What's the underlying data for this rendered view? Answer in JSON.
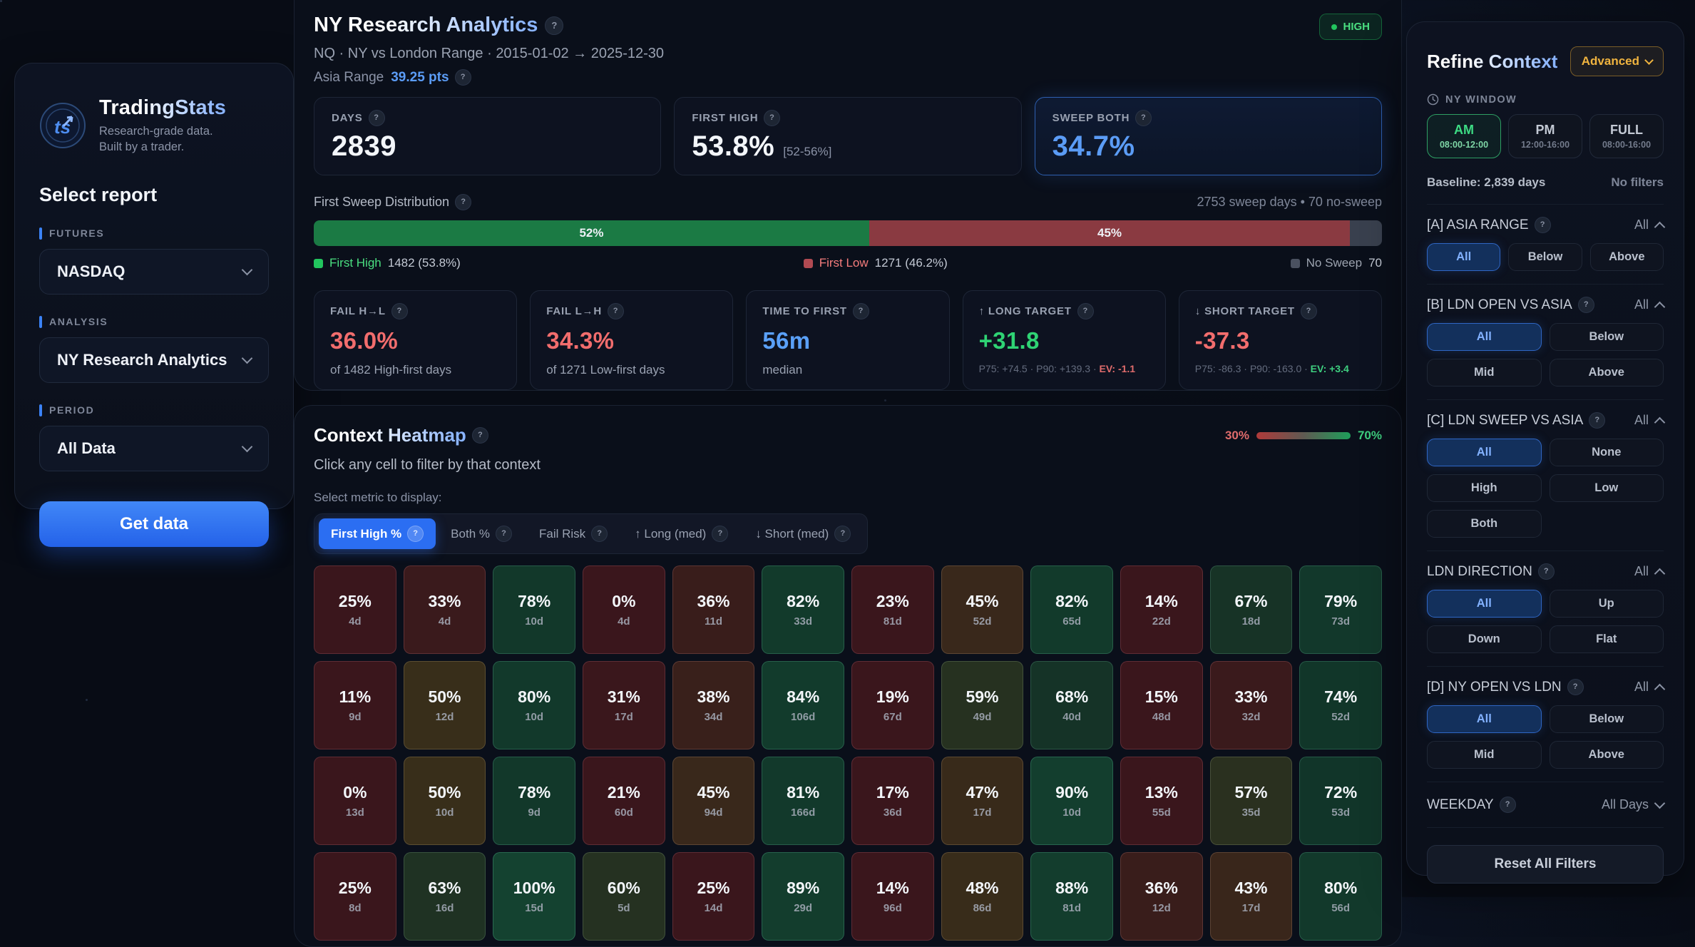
{
  "sidebar": {
    "brand": {
      "name": "TradingStats",
      "tagline1": "Research-grade data.",
      "tagline2": "Built by a trader."
    },
    "heading": "Select report",
    "fields": [
      {
        "label": "FUTURES",
        "value": "NASDAQ"
      },
      {
        "label": "ANALYSIS",
        "value": "NY Research Analytics"
      },
      {
        "label": "PERIOD",
        "value": "All Data"
      }
    ],
    "cta": "Get data"
  },
  "header": {
    "title": "NY Research Analytics",
    "badge": "HIGH",
    "subtitle": "NQ · NY vs London Range · 2015-01-02 → 2025-12-30",
    "asia_range_label": "Asia Range",
    "asia_range_value": "39.25 pts"
  },
  "stats_top": [
    {
      "label": "DAYS",
      "value": "2839"
    },
    {
      "label": "FIRST HIGH",
      "value": "53.8%",
      "range": "[52-56%]"
    },
    {
      "label": "SWEEP BOTH",
      "value": "34.7%",
      "value_color": "#5b9cf6",
      "highlight": true
    }
  ],
  "sweep": {
    "title": "First Sweep Distribution",
    "meta": "2753 sweep days • 70 no-sweep",
    "segments": [
      {
        "label": "52%",
        "pct": 52,
        "color": "#1b7a44"
      },
      {
        "label": "45%",
        "pct": 45,
        "color": "#8a3a41"
      },
      {
        "label": "",
        "pct": 3,
        "color": "#39404e"
      }
    ],
    "legend": [
      {
        "swatch": "#22c55e",
        "label": "First High",
        "label_color": "#4ade80",
        "value": "1482 (53.8%)"
      },
      {
        "swatch": "#b14a52",
        "label": "First Low",
        "label_color": "#f47c7c",
        "value": "1271 (46.2%)"
      },
      {
        "swatch": "#4a5160",
        "label": "No Sweep",
        "label_color": "#9ca3af",
        "value": "70"
      }
    ]
  },
  "stats_mid": [
    {
      "label": "FAIL H→L",
      "value": "36.0%",
      "value_color": "#f26d6d",
      "sub": "of 1482 High-first days"
    },
    {
      "label": "FAIL L→H",
      "value": "34.3%",
      "value_color": "#f26d6d",
      "sub": "of 1271 Low-first days"
    },
    {
      "label": "TIME TO FIRST",
      "value": "56m",
      "value_color": "#5aa0f8",
      "sub": "median"
    },
    {
      "label": "↑ LONG TARGET",
      "value": "+31.8",
      "value_color": "#2fd374",
      "sub_prefix": "P75: +74.5 · P90: +139.3 · ",
      "ev": "EV: -1.1",
      "ev_color": "#e06c6c"
    },
    {
      "label": "↓ SHORT TARGET",
      "value": "-37.3",
      "value_color": "#f26d6d",
      "sub_prefix": "P75: -86.3 · P90: -163.0 · ",
      "ev": "EV: +3.4",
      "ev_color": "#3ecf7f"
    }
  ],
  "heatmap": {
    "title": "Context Heatmap",
    "scale_min": "30%",
    "scale_max": "70%",
    "subtitle": "Click any cell to filter by that context",
    "metric_label": "Select metric to display:",
    "tabs": [
      {
        "label": "First High %",
        "active": true
      },
      {
        "label": "Both %"
      },
      {
        "label": "Fail Risk"
      },
      {
        "label": "↑ Long (med)"
      },
      {
        "label": "↓ Short (med)"
      }
    ],
    "chart_data": {
      "type": "heatmap",
      "metric": "First High %",
      "rows": [
        [
          {
            "v": 25,
            "d": "4d"
          },
          {
            "v": 33,
            "d": "4d"
          },
          {
            "v": 78,
            "d": "10d"
          },
          {
            "v": 0,
            "d": "4d"
          },
          {
            "v": 36,
            "d": "11d"
          },
          {
            "v": 82,
            "d": "33d"
          },
          {
            "v": 23,
            "d": "81d"
          },
          {
            "v": 45,
            "d": "52d"
          },
          {
            "v": 82,
            "d": "65d"
          },
          {
            "v": 14,
            "d": "22d"
          },
          {
            "v": 67,
            "d": "18d"
          },
          {
            "v": 79,
            "d": "73d"
          }
        ],
        [
          {
            "v": 11,
            "d": "9d"
          },
          {
            "v": 50,
            "d": "12d"
          },
          {
            "v": 80,
            "d": "10d"
          },
          {
            "v": 31,
            "d": "17d"
          },
          {
            "v": 38,
            "d": "34d"
          },
          {
            "v": 84,
            "d": "106d"
          },
          {
            "v": 19,
            "d": "67d"
          },
          {
            "v": 59,
            "d": "49d"
          },
          {
            "v": 68,
            "d": "40d"
          },
          {
            "v": 15,
            "d": "48d"
          },
          {
            "v": 33,
            "d": "32d"
          },
          {
            "v": 74,
            "d": "52d"
          }
        ],
        [
          {
            "v": 0,
            "d": "13d"
          },
          {
            "v": 50,
            "d": "10d"
          },
          {
            "v": 78,
            "d": "9d"
          },
          {
            "v": 21,
            "d": "60d"
          },
          {
            "v": 45,
            "d": "94d"
          },
          {
            "v": 81,
            "d": "166d"
          },
          {
            "v": 17,
            "d": "36d"
          },
          {
            "v": 47,
            "d": "17d"
          },
          {
            "v": 90,
            "d": "10d"
          },
          {
            "v": 13,
            "d": "55d"
          },
          {
            "v": 57,
            "d": "35d"
          },
          {
            "v": 72,
            "d": "53d"
          }
        ],
        [
          {
            "v": 25,
            "d": "8d"
          },
          {
            "v": 63,
            "d": "16d"
          },
          {
            "v": 100,
            "d": "15d"
          },
          {
            "v": 60,
            "d": "5d"
          },
          {
            "v": 25,
            "d": "14d"
          },
          {
            "v": 89,
            "d": "29d"
          },
          {
            "v": 14,
            "d": "96d"
          },
          {
            "v": 48,
            "d": "86d"
          },
          {
            "v": 88,
            "d": "81d"
          },
          {
            "v": 36,
            "d": "12d"
          },
          {
            "v": 43,
            "d": "17d"
          },
          {
            "v": 80,
            "d": "56d"
          }
        ]
      ],
      "scale": {
        "min": 30,
        "max": 70,
        "low_color": "#8a3a41",
        "high_color": "#1e9e5a"
      }
    }
  },
  "refine": {
    "title": "Refine Context",
    "advanced": "Advanced",
    "window_label": "NY WINDOW",
    "window_options": [
      {
        "name": "AM",
        "time": "08:00-12:00",
        "active": true
      },
      {
        "name": "PM",
        "time": "12:00-16:00"
      },
      {
        "name": "FULL",
        "time": "08:00-16:00"
      }
    ],
    "baseline": "Baseline: 2,839 days",
    "no_filters": "No filters",
    "filters": [
      {
        "name": "[A] ASIA RANGE",
        "state": "All",
        "cols": 3,
        "active": 0,
        "options": [
          "All",
          "Below",
          "Above"
        ]
      },
      {
        "name": "[B] LDN OPEN VS ASIA",
        "state": "All",
        "cols": 2,
        "active": 0,
        "options": [
          "All",
          "Below",
          "Mid",
          "Above"
        ]
      },
      {
        "name": "[C] LDN SWEEP VS ASIA",
        "state": "All",
        "cols": 2,
        "active": 0,
        "options": [
          "All",
          "None",
          "High",
          "Low",
          "Both"
        ]
      },
      {
        "name": "LDN DIRECTION",
        "state": "All",
        "cols": 2,
        "active": 0,
        "options": [
          "All",
          "Up",
          "Down",
          "Flat"
        ]
      },
      {
        "name": "[D] NY OPEN VS LDN",
        "state": "All",
        "cols": 2,
        "active": 0,
        "options": [
          "All",
          "Below",
          "Mid",
          "Above"
        ]
      }
    ],
    "weekday": {
      "name": "WEEKDAY",
      "state": "All Days"
    },
    "reset": "Reset All Filters"
  }
}
